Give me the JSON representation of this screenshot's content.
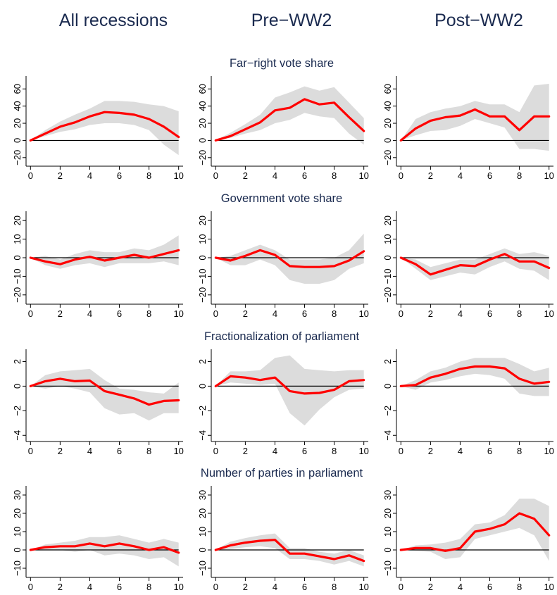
{
  "column_titles": [
    "All recessions",
    "Pre−WW2",
    "Post−WW2"
  ],
  "row_titles": [
    "Far−right vote share",
    "Government vote share",
    "Fractionalization of parliament",
    "Number of parties in parliament"
  ],
  "colors": {
    "line": "#ff0000",
    "band": "#dcdcdc",
    "zero_line": "#000000",
    "title": "#1a2a4f"
  },
  "chart_data": [
    {
      "type": "line",
      "row": 0,
      "col": 0,
      "x": [
        0,
        1,
        2,
        3,
        4,
        5,
        6,
        7,
        8,
        9,
        10
      ],
      "series": [
        {
          "values": [
            0,
            8,
            16,
            21,
            28,
            33,
            32,
            30,
            25,
            16,
            4
          ]
        }
      ],
      "band_lower": [
        0,
        5,
        10,
        13,
        18,
        20,
        20,
        18,
        12,
        -5,
        -17
      ],
      "band_upper": [
        0,
        12,
        22,
        30,
        37,
        46,
        46,
        45,
        42,
        40,
        34
      ],
      "ylim": [
        -30,
        75
      ],
      "yticks": [
        -20,
        0,
        20,
        40,
        60
      ],
      "yticklabels": [
        "−20",
        "0",
        "20",
        "40",
        "60"
      ],
      "xticks": [
        0,
        2,
        4,
        6,
        8,
        10
      ],
      "xlim": [
        -0.3,
        10.3
      ]
    },
    {
      "type": "line",
      "row": 0,
      "col": 1,
      "x": [
        0,
        1,
        2,
        3,
        4,
        5,
        6,
        7,
        8,
        9,
        10
      ],
      "series": [
        {
          "values": [
            0,
            5,
            13,
            21,
            35,
            38,
            48,
            42,
            44,
            27,
            11
          ]
        }
      ],
      "band_lower": [
        0,
        3,
        8,
        12,
        20,
        24,
        32,
        28,
        26,
        8,
        -5
      ],
      "band_upper": [
        0,
        9,
        19,
        30,
        50,
        56,
        63,
        58,
        62,
        44,
        26
      ],
      "ylim": [
        -30,
        75
      ],
      "yticks": [
        -20,
        0,
        20,
        40,
        60
      ],
      "yticklabels": [
        "−20",
        "0",
        "20",
        "40",
        "60"
      ],
      "xticks": [
        0,
        2,
        4,
        6,
        8,
        10
      ],
      "xlim": [
        -0.3,
        10.3
      ]
    },
    {
      "type": "line",
      "row": 0,
      "col": 2,
      "x": [
        0,
        1,
        2,
        3,
        4,
        5,
        6,
        7,
        8,
        9,
        10
      ],
      "series": [
        {
          "values": [
            0,
            14,
            23,
            27,
            29,
            36,
            28,
            28,
            12,
            28,
            28
          ]
        }
      ],
      "band_lower": [
        0,
        6,
        11,
        12,
        17,
        25,
        20,
        15,
        -10,
        -10,
        -12
      ],
      "band_upper": [
        0,
        25,
        33,
        37,
        40,
        46,
        42,
        42,
        33,
        64,
        66
      ],
      "ylim": [
        -30,
        75
      ],
      "yticks": [
        -20,
        0,
        20,
        40,
        60
      ],
      "yticklabels": [
        "−20",
        "0",
        "20",
        "40",
        "60"
      ],
      "xticks": [
        0,
        2,
        4,
        6,
        8,
        10
      ],
      "xlim": [
        -0.3,
        10.3
      ]
    },
    {
      "type": "line",
      "row": 1,
      "col": 0,
      "x": [
        0,
        1,
        2,
        3,
        4,
        5,
        6,
        7,
        8,
        9,
        10
      ],
      "series": [
        {
          "values": [
            0,
            -2,
            -3.5,
            -1,
            0.5,
            -1.5,
            0,
            1.5,
            0,
            2,
            4
          ]
        }
      ],
      "band_lower": [
        0,
        -4,
        -6,
        -4,
        -3,
        -5,
        -3,
        -3,
        -3,
        -2,
        -4
      ],
      "band_upper": [
        0,
        1,
        -1,
        2,
        4,
        3,
        3,
        5,
        4,
        7,
        12
      ],
      "ylim": [
        -25,
        25
      ],
      "yticks": [
        -20,
        -10,
        0,
        10,
        20
      ],
      "yticklabels": [
        "−20",
        "−10",
        "0",
        "10",
        "20"
      ],
      "xticks": [
        0,
        2,
        4,
        6,
        8,
        10
      ],
      "xlim": [
        -0.3,
        10.3
      ]
    },
    {
      "type": "line",
      "row": 1,
      "col": 1,
      "x": [
        0,
        1,
        2,
        3,
        4,
        5,
        6,
        7,
        8,
        9,
        10
      ],
      "series": [
        {
          "values": [
            0,
            -1.5,
            1,
            4,
            1.5,
            -4.5,
            -5,
            -5,
            -4.5,
            -1.5,
            3.5
          ]
        }
      ],
      "band_lower": [
        0,
        -4,
        -4,
        -1,
        -4,
        -12,
        -14,
        -14,
        -12,
        -6,
        -3
      ],
      "band_upper": [
        0,
        1,
        4,
        7,
        4,
        -1,
        -1,
        -1,
        0,
        4,
        13
      ],
      "ylim": [
        -25,
        25
      ],
      "yticks": [
        -20,
        -10,
        0,
        10,
        20
      ],
      "yticklabels": [
        "−20",
        "−10",
        "0",
        "10",
        "20"
      ],
      "xticks": [
        0,
        2,
        4,
        6,
        8,
        10
      ],
      "xlim": [
        -0.3,
        10.3
      ]
    },
    {
      "type": "line",
      "row": 1,
      "col": 2,
      "x": [
        0,
        1,
        2,
        3,
        4,
        5,
        6,
        7,
        8,
        9,
        10
      ],
      "series": [
        {
          "values": [
            0,
            -3.5,
            -9,
            -6.5,
            -4,
            -4.5,
            -1,
            2,
            -2,
            -2,
            -5.5
          ]
        }
      ],
      "band_lower": [
        0,
        -6,
        -12,
        -10,
        -8,
        -9,
        -5,
        -2,
        -6,
        -7,
        -12
      ],
      "band_upper": [
        0,
        -1,
        -5,
        -3,
        -1,
        -1,
        2,
        5,
        2,
        3,
        1
      ],
      "ylim": [
        -25,
        25
      ],
      "yticks": [
        -20,
        -10,
        0,
        10,
        20
      ],
      "yticklabels": [
        "−20",
        "−10",
        "0",
        "10",
        "20"
      ],
      "xticks": [
        0,
        2,
        4,
        6,
        8,
        10
      ],
      "xlim": [
        -0.3,
        10.3
      ]
    },
    {
      "type": "line",
      "row": 2,
      "col": 0,
      "x": [
        0,
        1,
        2,
        3,
        4,
        5,
        6,
        7,
        8,
        9,
        10
      ],
      "series": [
        {
          "values": [
            0,
            0.4,
            0.6,
            0.4,
            0.45,
            -0.4,
            -0.7,
            -1.0,
            -1.5,
            -1.2,
            -1.15
          ]
        }
      ],
      "band_lower": [
        0,
        -0.2,
        0,
        -0.2,
        -0.5,
        -1.8,
        -2.3,
        -2.2,
        -2.8,
        -2.2,
        -2.2
      ],
      "band_upper": [
        0,
        0.9,
        1.2,
        1.3,
        1.4,
        0.5,
        -0.2,
        -0.3,
        -0.5,
        -0.6,
        0.3
      ],
      "ylim": [
        -4.5,
        3
      ],
      "yticks": [
        -4,
        -2,
        0,
        2
      ],
      "yticklabels": [
        "−4",
        "−2",
        "0",
        "2"
      ],
      "xticks": [
        0,
        2,
        4,
        6,
        8,
        10
      ],
      "xlim": [
        -0.3,
        10.3
      ]
    },
    {
      "type": "line",
      "row": 2,
      "col": 1,
      "x": [
        0,
        1,
        2,
        3,
        4,
        5,
        6,
        7,
        8,
        9,
        10
      ],
      "series": [
        {
          "values": [
            0,
            0.8,
            0.7,
            0.5,
            0.7,
            -0.4,
            -0.6,
            -0.55,
            -0.3,
            0.4,
            0.5
          ]
        }
      ],
      "band_lower": [
        0,
        0.3,
        0.2,
        0.1,
        0.2,
        -2.2,
        -3.2,
        -1.9,
        -0.9,
        -0.3,
        -0.2
      ],
      "band_upper": [
        0,
        1.2,
        1.2,
        1.3,
        2.3,
        2.5,
        1.4,
        1.3,
        1.2,
        1.3,
        1.3
      ],
      "ylim": [
        -4.5,
        3
      ],
      "yticks": [
        -4,
        -2,
        0,
        2
      ],
      "yticklabels": [
        "−4",
        "−2",
        "0",
        "2"
      ],
      "xticks": [
        0,
        2,
        4,
        6,
        8,
        10
      ],
      "xlim": [
        -0.3,
        10.3
      ]
    },
    {
      "type": "line",
      "row": 2,
      "col": 2,
      "x": [
        0,
        1,
        2,
        3,
        4,
        5,
        6,
        7,
        8,
        9,
        10
      ],
      "series": [
        {
          "values": [
            0,
            0.1,
            0.7,
            1.0,
            1.4,
            1.6,
            1.6,
            1.45,
            0.6,
            0.2,
            0.35
          ]
        }
      ],
      "band_lower": [
        0,
        -0.3,
        0.3,
        0.5,
        0.8,
        1.0,
        0.9,
        0.6,
        -0.6,
        -0.8,
        -0.8
      ],
      "band_upper": [
        0,
        0.5,
        1.2,
        1.5,
        2.0,
        2.3,
        2.3,
        2.3,
        1.8,
        1.2,
        1.5
      ],
      "ylim": [
        -4.5,
        3
      ],
      "yticks": [
        -4,
        -2,
        0,
        2
      ],
      "yticklabels": [
        "−4",
        "−2",
        "0",
        "2"
      ],
      "xticks": [
        0,
        2,
        4,
        6,
        8,
        10
      ],
      "xlim": [
        -0.3,
        10.3
      ]
    },
    {
      "type": "line",
      "row": 3,
      "col": 0,
      "x": [
        0,
        1,
        2,
        3,
        4,
        5,
        6,
        7,
        8,
        9,
        10
      ],
      "series": [
        {
          "values": [
            0,
            1.5,
            2,
            2,
            3.5,
            2,
            3.5,
            2,
            0,
            1.5,
            -1.5
          ]
        }
      ],
      "band_lower": [
        0,
        0,
        0,
        -1,
        0,
        -3,
        -2,
        -3,
        -5,
        -4,
        -9
      ],
      "band_upper": [
        0,
        3,
        4,
        5,
        7,
        7,
        8,
        6,
        4,
        6,
        4
      ],
      "ylim": [
        -15,
        35
      ],
      "yticks": [
        -10,
        0,
        10,
        20,
        30
      ],
      "yticklabels": [
        "−10",
        "0",
        "10",
        "20",
        "30"
      ],
      "xticks": [
        0,
        2,
        4,
        6,
        8,
        10
      ],
      "xlim": [
        -0.3,
        10.3
      ]
    },
    {
      "type": "line",
      "row": 3,
      "col": 1,
      "x": [
        0,
        1,
        2,
        3,
        4,
        5,
        6,
        7,
        8,
        9,
        10
      ],
      "series": [
        {
          "values": [
            0,
            2.5,
            4,
            5,
            5.5,
            -2,
            -2,
            -3.5,
            -5,
            -3,
            -6
          ]
        }
      ],
      "band_lower": [
        0,
        0.5,
        1.5,
        2,
        1,
        -5,
        -5,
        -6,
        -8,
        -6,
        -9
      ],
      "band_upper": [
        0,
        4.5,
        6.5,
        8,
        9,
        1,
        1,
        -1,
        -2,
        0,
        -3
      ],
      "ylim": [
        -15,
        35
      ],
      "yticks": [
        -10,
        0,
        10,
        20,
        30
      ],
      "yticklabels": [
        "−10",
        "0",
        "10",
        "20",
        "30"
      ],
      "xticks": [
        0,
        2,
        4,
        6,
        8,
        10
      ],
      "xlim": [
        -0.3,
        10.3
      ]
    },
    {
      "type": "line",
      "row": 3,
      "col": 2,
      "x": [
        0,
        1,
        2,
        3,
        4,
        5,
        6,
        7,
        8,
        9,
        10
      ],
      "series": [
        {
          "values": [
            0,
            1,
            1,
            -0.5,
            1,
            10,
            11.5,
            14,
            20,
            17,
            8
          ]
        }
      ],
      "band_lower": [
        0,
        -0.5,
        -1,
        -5,
        -4,
        6,
        8,
        10,
        12,
        8,
        -6
      ],
      "band_upper": [
        0,
        2.5,
        3,
        4,
        6,
        14,
        15,
        19,
        28,
        28,
        24
      ],
      "ylim": [
        -15,
        35
      ],
      "yticks": [
        -10,
        0,
        10,
        20,
        30
      ],
      "yticklabels": [
        "−10",
        "0",
        "10",
        "20",
        "30"
      ],
      "xticks": [
        0,
        2,
        4,
        6,
        8,
        10
      ],
      "xlim": [
        -0.3,
        10.3
      ]
    }
  ]
}
